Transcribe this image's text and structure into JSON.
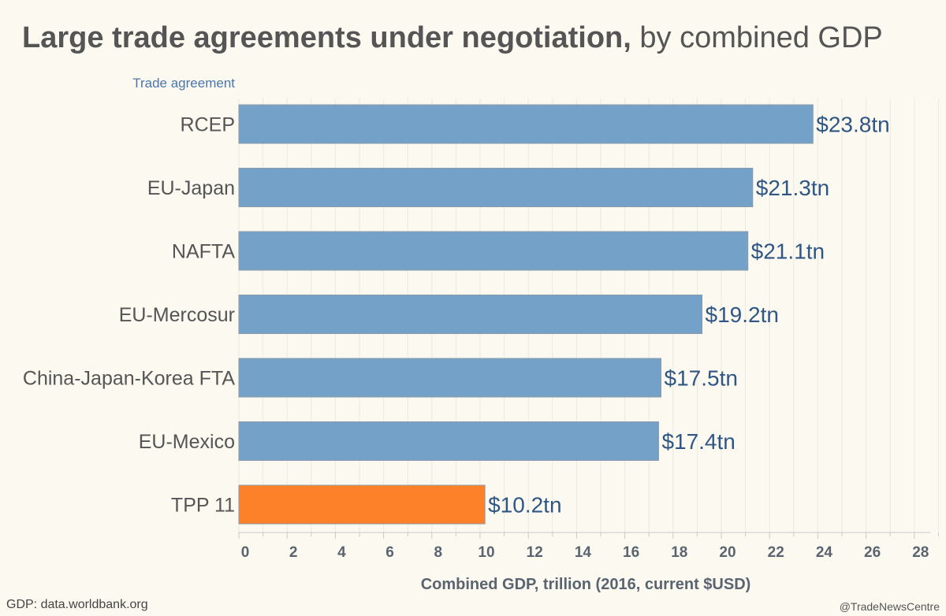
{
  "title_bold": "Large trade agreements under negotiation,",
  "title_rest": " by combined GDP",
  "category_header": "Trade agreement",
  "source": "GDP: data.worldbank.org",
  "credit": "@TradeNewsCentre",
  "colors": {
    "default_bar": "#74a1c8",
    "highlight_bar": "#fd8128",
    "bar_border": "#8b9aa8"
  },
  "chart_data": {
    "type": "bar",
    "orientation": "horizontal",
    "categories": [
      "RCEP",
      "EU-Japan",
      "NAFTA",
      "EU-Mercosur",
      "China-Japan-Korea FTA",
      "EU-Mexico",
      "TPP 11"
    ],
    "values": [
      23.8,
      21.3,
      21.1,
      19.2,
      17.5,
      17.4,
      10.2
    ],
    "value_labels": [
      "$23.8tn",
      "$21.3tn",
      "$21.1tn",
      "$19.2tn",
      "$17.5tn",
      "$17.4tn",
      "$10.2tn"
    ],
    "highlight": "TPP 11",
    "xlabel": "Combined GDP, trillion  (2016, current $USD)",
    "xlim": [
      0,
      29
    ],
    "xticks": [
      0,
      2,
      4,
      6,
      8,
      10,
      12,
      14,
      16,
      18,
      20,
      22,
      24,
      26,
      28
    ],
    "grid": true,
    "legend": "none"
  }
}
